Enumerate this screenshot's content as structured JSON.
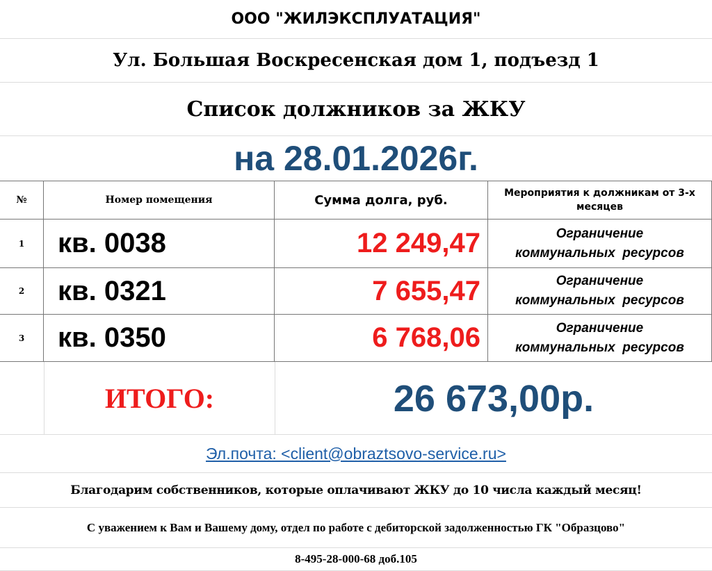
{
  "header": {
    "company": "ООО \"ЖИЛЭКСПЛУАТАЦИЯ\"",
    "address": "Ул. Большая Воскресенская дом 1, подъезд 1",
    "list_title": "Список должников за ЖКУ",
    "date": "на 28.01.2026г."
  },
  "table": {
    "columns": [
      "№",
      "Номер помещения",
      "Сумма долга, руб.",
      "Мероприятия к должникам от 3-х месяцев"
    ],
    "rows": [
      {
        "n": "1",
        "apartment": "кв. 0038",
        "debt": "12 249,47",
        "action_1": "Ограничение",
        "action_2": "коммунальных  ресурсов"
      },
      {
        "n": "2",
        "apartment": "кв. 0321",
        "debt": "7 655,47",
        "action_1": "Ограничение",
        "action_2": "коммунальных  ресурсов"
      },
      {
        "n": "3",
        "apartment": "кв. 0350",
        "debt": "6 768,06",
        "action_1": "Ограничение",
        "action_2": "коммунальных  ресурсов"
      }
    ],
    "total_label": "ИТОГО:",
    "total_value": "26 673,00р."
  },
  "footer": {
    "email": "Эл.почта: <client@obraztsovo-service.ru>",
    "thanks": "Благодарим собственников, которые оплачивают ЖКУ до 10 числа каждый месяц!",
    "regards": "С уважением к Вам и Вашему дому, отдел по работе с дебиторской задолженностью ГК \"Образцово\"",
    "phone": "8-495-28-000-68 доб.105"
  },
  "colors": {
    "accent_blue": "#1f4e79",
    "debt_red": "#ee1c1c",
    "link_blue": "#1f5fa8"
  }
}
